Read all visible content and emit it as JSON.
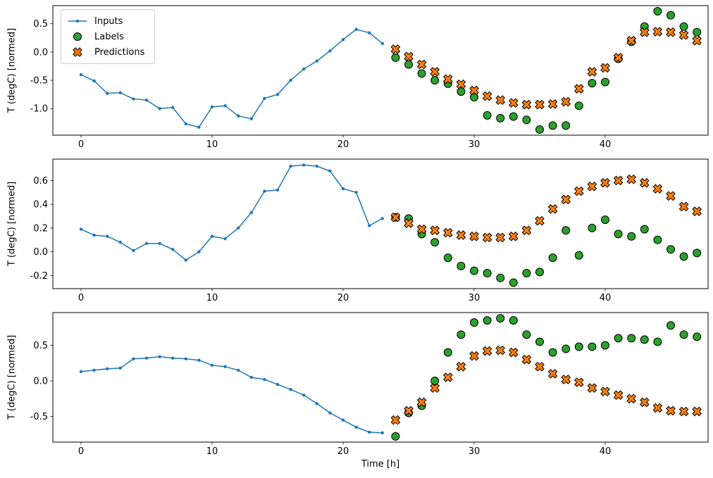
{
  "figure": {
    "xlabel": "Time [h]",
    "background": "#ffffff"
  },
  "legend": {
    "items": [
      {
        "label": "Inputs",
        "marker": "line-dot",
        "color": "#1f77b4",
        "edge": "#1f77b4"
      },
      {
        "label": "Labels",
        "marker": "circle",
        "color": "#2ca02c",
        "edge": "#000000"
      },
      {
        "label": "Predictions",
        "marker": "x-cross",
        "color": "#ff7f0e",
        "edge": "#000000"
      }
    ]
  },
  "chart_data": [
    {
      "type": "line",
      "title": "",
      "ylabel": "T (degC) [normed]",
      "xlim": [
        -2.15,
        47.85
      ],
      "ylim": [
        -1.47,
        0.82
      ],
      "xticks": [
        0,
        10,
        20,
        30,
        40
      ],
      "xtick_labels": [
        "0",
        "10",
        "20",
        "30",
        "40"
      ],
      "yticks": [
        -1.0,
        -0.5,
        0.0,
        0.5
      ],
      "ytick_labels": [
        "-1.0",
        "-0.5",
        "0.0",
        "0.5"
      ],
      "grid": false,
      "legend_position": "upper-left",
      "series": [
        {
          "name": "Inputs",
          "style": "line-dot",
          "color": "#1f77b4",
          "edge": "#1f77b4",
          "x": [
            0,
            1,
            2,
            3,
            4,
            5,
            6,
            7,
            8,
            9,
            10,
            11,
            12,
            13,
            14,
            15,
            16,
            17,
            18,
            19,
            20,
            21,
            22,
            23
          ],
          "y": [
            -0.4,
            -0.51,
            -0.73,
            -0.72,
            -0.83,
            -0.85,
            -1.0,
            -0.98,
            -1.27,
            -1.33,
            -0.97,
            -0.95,
            -1.13,
            -1.18,
            -0.82,
            -0.75,
            -0.5,
            -0.3,
            -0.16,
            0.02,
            0.22,
            0.4,
            0.34,
            0.15
          ]
        },
        {
          "name": "Labels",
          "style": "circle",
          "color": "#2ca02c",
          "edge": "#000000",
          "x": [
            24,
            25,
            26,
            27,
            28,
            29,
            30,
            31,
            32,
            33,
            34,
            35,
            36,
            37,
            38,
            39,
            40,
            41,
            42,
            43,
            44,
            45,
            46,
            47
          ],
          "y": [
            -0.1,
            -0.22,
            -0.38,
            -0.5,
            -0.56,
            -0.7,
            -0.8,
            -1.12,
            -1.17,
            -1.14,
            -1.2,
            -1.37,
            -1.3,
            -1.3,
            -0.95,
            -0.55,
            -0.53,
            -0.12,
            0.18,
            0.45,
            0.72,
            0.65,
            0.45,
            0.35
          ]
        },
        {
          "name": "Predictions",
          "style": "x-cross",
          "color": "#ff7f0e",
          "edge": "#000000",
          "x": [
            24,
            25,
            26,
            27,
            28,
            29,
            30,
            31,
            32,
            33,
            34,
            35,
            36,
            37,
            38,
            39,
            40,
            41,
            42,
            43,
            44,
            45,
            46,
            47
          ],
          "y": [
            0.05,
            -0.08,
            -0.22,
            -0.35,
            -0.48,
            -0.57,
            -0.68,
            -0.78,
            -0.85,
            -0.9,
            -0.93,
            -0.93,
            -0.92,
            -0.88,
            -0.65,
            -0.35,
            -0.28,
            -0.1,
            0.2,
            0.35,
            0.36,
            0.35,
            0.3,
            0.2
          ]
        }
      ]
    },
    {
      "type": "line",
      "title": "",
      "ylabel": "T (degC) [normed]",
      "xlim": [
        -2.15,
        47.85
      ],
      "ylim": [
        -0.31,
        0.78
      ],
      "xticks": [
        0,
        10,
        20,
        30,
        40
      ],
      "xtick_labels": [
        "0",
        "10",
        "20",
        "30",
        "40"
      ],
      "yticks": [
        -0.2,
        0.0,
        0.2,
        0.4,
        0.6
      ],
      "ytick_labels": [
        "-0.2",
        "0.0",
        "0.2",
        "0.4",
        "0.6"
      ],
      "grid": false,
      "legend_position": "none",
      "series": [
        {
          "name": "Inputs",
          "style": "line-dot",
          "color": "#1f77b4",
          "edge": "#1f77b4",
          "x": [
            0,
            1,
            2,
            3,
            4,
            5,
            6,
            7,
            8,
            9,
            10,
            11,
            12,
            13,
            14,
            15,
            16,
            17,
            18,
            19,
            20,
            21,
            22,
            23
          ],
          "y": [
            0.19,
            0.14,
            0.13,
            0.08,
            0.01,
            0.07,
            0.07,
            0.02,
            -0.07,
            0.0,
            0.13,
            0.11,
            0.2,
            0.33,
            0.51,
            0.52,
            0.72,
            0.73,
            0.72,
            0.68,
            0.53,
            0.5,
            0.22,
            0.28
          ]
        },
        {
          "name": "Labels",
          "style": "circle",
          "color": "#2ca02c",
          "edge": "#000000",
          "x": [
            24,
            25,
            26,
            27,
            28,
            29,
            30,
            31,
            32,
            33,
            34,
            35,
            36,
            37,
            38,
            39,
            40,
            41,
            42,
            43,
            44,
            45,
            46,
            47
          ],
          "y": [
            0.29,
            0.28,
            0.15,
            0.08,
            -0.05,
            -0.12,
            -0.16,
            -0.18,
            -0.22,
            -0.26,
            -0.18,
            -0.17,
            -0.05,
            0.18,
            -0.03,
            0.2,
            0.27,
            0.15,
            0.13,
            0.19,
            0.1,
            0.02,
            -0.04,
            -0.01
          ]
        },
        {
          "name": "Predictions",
          "style": "x-cross",
          "color": "#ff7f0e",
          "edge": "#000000",
          "x": [
            24,
            25,
            26,
            27,
            28,
            29,
            30,
            31,
            32,
            33,
            34,
            35,
            36,
            37,
            38,
            39,
            40,
            41,
            42,
            43,
            44,
            45,
            46,
            47
          ],
          "y": [
            0.29,
            0.24,
            0.19,
            0.18,
            0.16,
            0.14,
            0.13,
            0.12,
            0.12,
            0.13,
            0.18,
            0.26,
            0.36,
            0.44,
            0.51,
            0.55,
            0.58,
            0.6,
            0.61,
            0.58,
            0.53,
            0.47,
            0.38,
            0.34
          ]
        }
      ]
    },
    {
      "type": "line",
      "title": "",
      "ylabel": "T (degC) [normed]",
      "xlabel": "Time [h]",
      "xlim": [
        -2.15,
        47.85
      ],
      "ylim": [
        -0.86,
        0.96
      ],
      "xticks": [
        0,
        10,
        20,
        30,
        40
      ],
      "xtick_labels": [
        "0",
        "10",
        "20",
        "30",
        "40"
      ],
      "yticks": [
        -0.5,
        0.0,
        0.5
      ],
      "ytick_labels": [
        "-0.5",
        "0.0",
        "0.5"
      ],
      "grid": false,
      "legend_position": "none",
      "series": [
        {
          "name": "Inputs",
          "style": "line-dot",
          "color": "#1f77b4",
          "edge": "#1f77b4",
          "x": [
            0,
            1,
            2,
            3,
            4,
            5,
            6,
            7,
            8,
            9,
            10,
            11,
            12,
            13,
            14,
            15,
            16,
            17,
            18,
            19,
            20,
            21,
            22,
            23
          ],
          "y": [
            0.13,
            0.15,
            0.17,
            0.18,
            0.31,
            0.32,
            0.34,
            0.32,
            0.31,
            0.29,
            0.22,
            0.2,
            0.15,
            0.05,
            0.02,
            -0.05,
            -0.12,
            -0.2,
            -0.32,
            -0.45,
            -0.55,
            -0.65,
            -0.72,
            -0.73
          ]
        },
        {
          "name": "Labels",
          "style": "circle",
          "color": "#2ca02c",
          "edge": "#000000",
          "x": [
            24,
            25,
            26,
            27,
            28,
            29,
            30,
            31,
            32,
            33,
            34,
            35,
            36,
            37,
            38,
            39,
            40,
            41,
            42,
            43,
            44,
            45,
            46,
            47
          ],
          "y": [
            -0.78,
            -0.45,
            -0.35,
            0.0,
            0.4,
            0.65,
            0.82,
            0.85,
            0.88,
            0.85,
            0.65,
            0.55,
            0.4,
            0.45,
            0.48,
            0.48,
            0.5,
            0.6,
            0.6,
            0.58,
            0.55,
            0.78,
            0.65,
            0.62
          ]
        },
        {
          "name": "Predictions",
          "style": "x-cross",
          "color": "#ff7f0e",
          "edge": "#000000",
          "x": [
            24,
            25,
            26,
            27,
            28,
            29,
            30,
            31,
            32,
            33,
            34,
            35,
            36,
            37,
            38,
            39,
            40,
            41,
            42,
            43,
            44,
            45,
            46,
            47
          ],
          "y": [
            -0.55,
            -0.42,
            -0.3,
            -0.1,
            0.05,
            0.2,
            0.35,
            0.42,
            0.43,
            0.4,
            0.3,
            0.2,
            0.1,
            0.02,
            -0.02,
            -0.1,
            -0.15,
            -0.2,
            -0.25,
            -0.3,
            -0.38,
            -0.42,
            -0.43,
            -0.43
          ]
        }
      ]
    }
  ]
}
